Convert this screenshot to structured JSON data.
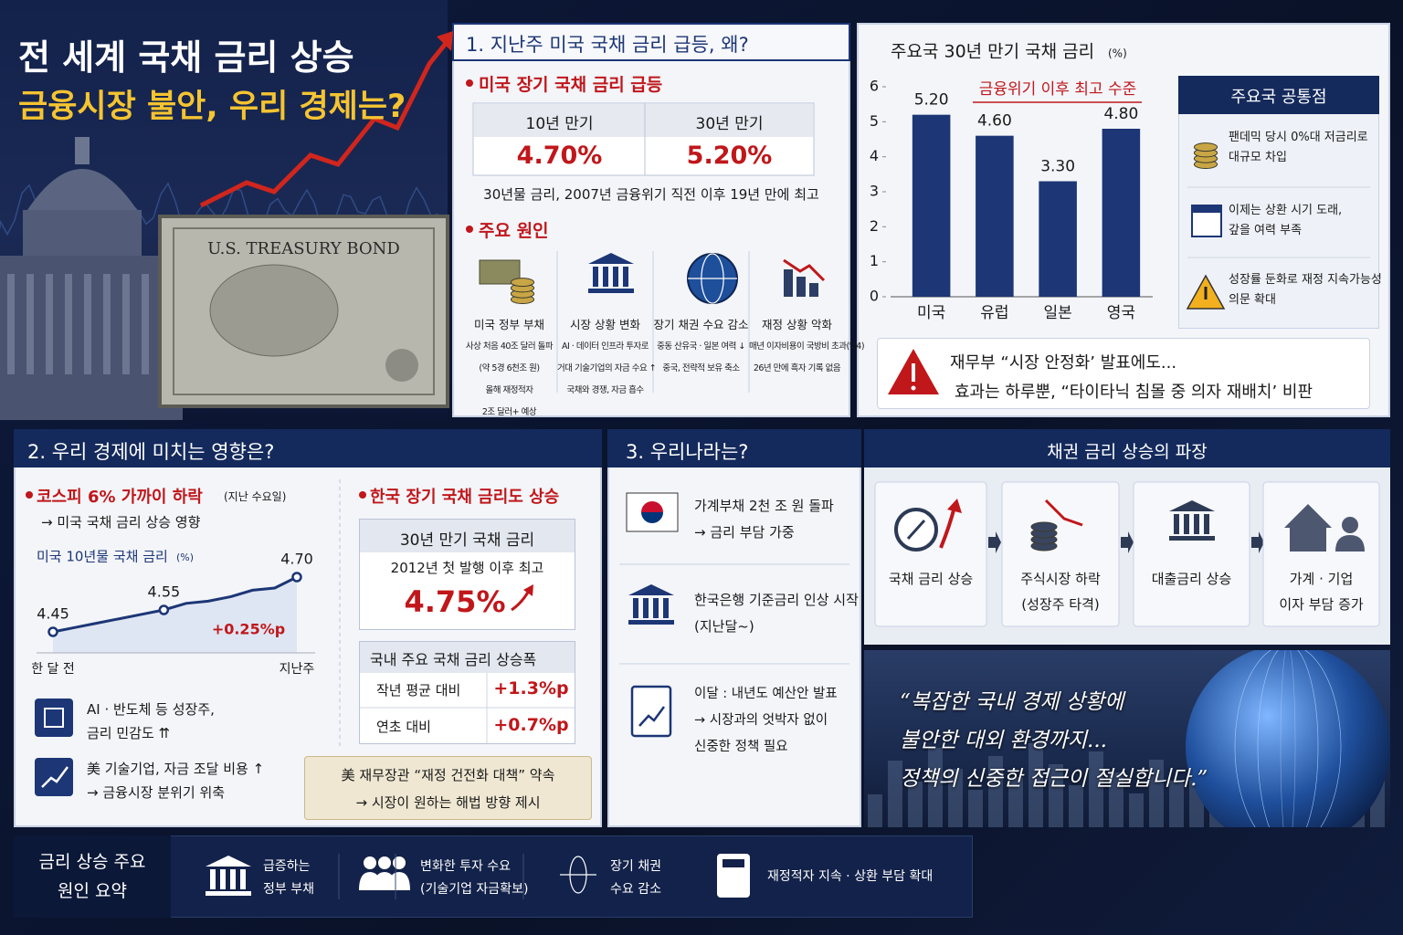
{
  "header": {
    "title": "전 세계 국채 금리 상승",
    "subtitle": "금융시장 불안, 우리 경제는?",
    "bond_label": "U.S. TREASURY BOND"
  },
  "section1": {
    "title": "1. 지난주 미국 국채 금리 급등, 왜?",
    "heading": "미국 장기 국채 금리 급등",
    "table": {
      "headers": [
        "10년 만기",
        "30년 만기"
      ],
      "values": [
        "4.70%",
        "5.20%"
      ]
    },
    "note": "30년물 금리, 2007년 금융위기 직전 이후 19년 만에 최고",
    "causes_heading": "주요 원인",
    "causes": [
      {
        "title": "미국 정부 부채",
        "lines": [
          "사상 처음 40조 달러 돌파",
          "(약 5경 6천조 원)",
          "올해 재정적자",
          "2조 달러+ 예상"
        ]
      },
      {
        "title": "시장 상황 변화",
        "lines": [
          "AI · 데이터 인프라 투자로",
          "거대 기술기업의 자금 수요 ↑",
          "국채와 경쟁, 자금 흡수"
        ]
      },
      {
        "title": "장기 채권 수요 감소",
        "lines": [
          "중동 산유국 · 일본 여력 ↓",
          "중국, 전략적 보유 축소"
        ]
      },
      {
        "title": "재정 상황 악화",
        "lines": [
          "매년 이자비용이 국방비 초과('24)",
          "26년 만에 흑자 기록 없음"
        ]
      }
    ]
  },
  "chart_data": [
    {
      "type": "bar",
      "title": "주요국 30년 만기 국채 금리",
      "unit": "(%)",
      "annotation": "금융위기 이후 최고 수준",
      "categories": [
        "미국",
        "유럽",
        "일본",
        "영국"
      ],
      "values": [
        5.2,
        4.6,
        3.3,
        4.8
      ],
      "value_labels": [
        "5.20",
        "4.60",
        "3.30",
        "4.80"
      ],
      "color": "#1c3676",
      "ylim": [
        0,
        6
      ],
      "yticks": [
        0,
        1,
        2,
        3,
        4,
        5,
        6
      ],
      "grid": false
    },
    {
      "type": "line",
      "title": "미국 10년물 국채 금리",
      "unit": "(%)",
      "annotation": "+0.25%p",
      "categories": [
        "한 달 전",
        null,
        null,
        null,
        null,
        null,
        null,
        null,
        null,
        null,
        null,
        "지난주"
      ],
      "values": [
        4.45,
        4.47,
        4.49,
        4.51,
        4.53,
        4.55,
        4.58,
        4.59,
        4.61,
        4.64,
        4.65,
        4.7
      ],
      "value_labels": [
        "4.45",
        null,
        null,
        null,
        null,
        "4.55",
        null,
        null,
        null,
        null,
        null,
        "4.70"
      ],
      "color": "#1c3676"
    }
  ],
  "common": {
    "title": "주요국 공통점",
    "items": [
      [
        "팬데믹 당시 0%대 저금리로",
        "대규모 차입"
      ],
      [
        "이제는 상환 시기 도래,",
        "갚을 여력 부족"
      ],
      [
        "성장률 둔화로 재정 지속가능성",
        "의문 확대"
      ]
    ]
  },
  "alert": {
    "title": "재무부 “시장 안정화’ 발표에도...",
    "text": "효과는 하루뿐, “타이타닉 침몰 중 의자 재배치’ 비판"
  },
  "section2": {
    "title": "2. 우리 경제에 미치는 영향은?",
    "kospi": {
      "heading": "코스피 6% 가까이 하락",
      "note": "(지난 수요일)",
      "sub": "→ 미국 국채 금리 상승 영향"
    },
    "impacts": [
      [
        "AI · 반도체 등 성장주,",
        "금리 민감도 ⇈"
      ],
      [
        "美 기술기업, 자금 조달 비용 ↑",
        "→ 금융시장 분위기 위축"
      ]
    ],
    "korea": {
      "heading": "한국 장기 국채 금리도 상승",
      "box": {
        "title": "30년 만기 국채 금리",
        "sub": "2012년 첫 발행 이후 최고",
        "value": "4.75%"
      },
      "table": {
        "title": "국내 주요 국채 금리 상승폭",
        "rows": [
          [
            "작년 평균 대비",
            "+1.3%p"
          ],
          [
            "연초 대비",
            "+0.7%p"
          ]
        ]
      }
    },
    "promise": [
      "美 재무장관 “재정 건전화 대책” 약속",
      "→ 시장이 원하는 해법 방향 제시"
    ]
  },
  "section3": {
    "title": "3. 우리나라는?",
    "items": [
      [
        "가계부채 2천 조 원 돌파",
        "→ 금리 부담 가중"
      ],
      [
        "한국은행 기준금리 인상 시작",
        "(지난달~)"
      ],
      [
        "이달 : 내년도 예산안 발표",
        "→ 시장과의 엇박자 없이",
        "신중한 정책 필요"
      ]
    ]
  },
  "ripple": {
    "title": "채권 금리 상승의 파장",
    "steps": [
      [
        "국채 금리 상승"
      ],
      [
        "주식시장 하락",
        "(성장주 타격)"
      ],
      [
        "대출금리 상승"
      ],
      [
        "가계 · 기업",
        "이자 부담 증가"
      ]
    ]
  },
  "quote": [
    "“복잡한 국내 경제 상황에",
    "불안한 대외 환경까지...",
    "정책의 신중한 접근이 절실합니다.”"
  ],
  "summary": {
    "title": [
      "금리 상승 주요",
      "원인 요약"
    ],
    "items": [
      [
        "급증하는",
        "정부 부채"
      ],
      [
        "변화한 투자 수요",
        "(기술기업 자금확보)"
      ],
      [
        "장기 채권",
        "수요 감소"
      ],
      [
        "재정적자 지속 · 상환 부담 확대"
      ]
    ]
  }
}
